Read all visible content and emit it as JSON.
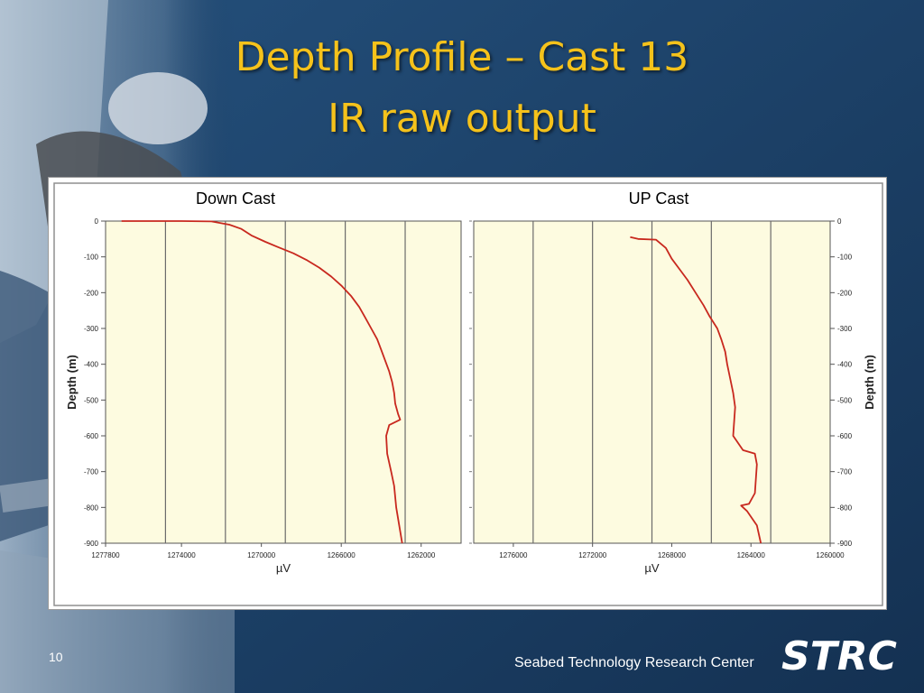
{
  "slide": {
    "title_line1": "Depth Profile – Cast 13",
    "title_line2": "IR raw output",
    "page_number": "10",
    "org_name": "Seabed Technology Research Center",
    "logo_text": "STRC",
    "colors": {
      "background": "#1b3a5e",
      "title": "#f5c21b",
      "plot_bg": "#fdfbe0",
      "trace": "#c8281e"
    }
  },
  "chart_data": [
    {
      "type": "line",
      "title": "Down Cast",
      "xlabel": "µV",
      "ylabel": "Depth (m)",
      "x_reversed": true,
      "xlim": [
        1277800,
        1260000
      ],
      "ylim": [
        -900,
        0
      ],
      "x_ticks": [
        1277800,
        1274000,
        1270000,
        1266000,
        1262000
      ],
      "x_tick_labels": [
        "1277800",
        "1274000",
        "1270000",
        "1266000",
        "1262000"
      ],
      "y_ticks": [
        0,
        -100,
        -200,
        -300,
        -400,
        -500,
        -600,
        -700,
        -800,
        -900
      ],
      "y_tick_labels": [
        "0",
        "-100",
        "-200",
        "-300",
        "-400",
        "-500",
        "-600",
        "-700",
        "-800",
        "-900"
      ],
      "vertical_grid": [
        1274800,
        1271800,
        1268800,
        1265800,
        1262800
      ],
      "series": [
        {
          "x": [
            1277000,
            1276000,
            1274000,
            1272500,
            1271600,
            1271000,
            1270500,
            1269800,
            1269200,
            1268400,
            1267700,
            1267100,
            1266500,
            1266000,
            1265500,
            1265100,
            1264800,
            1264500,
            1264200,
            1264000,
            1263800,
            1263600,
            1263450,
            1263350,
            1263300,
            1263150,
            1263050,
            1263600,
            1263750,
            1263700,
            1263500,
            1263350,
            1263250,
            1263100,
            1262950
          ],
          "y": [
            0,
            0,
            0,
            -1,
            -10,
            -22,
            -40,
            -58,
            -72,
            -90,
            -110,
            -130,
            -155,
            -180,
            -210,
            -240,
            -270,
            -300,
            -330,
            -360,
            -390,
            -420,
            -450,
            -480,
            -510,
            -540,
            -555,
            -570,
            -600,
            -650,
            -700,
            -740,
            -800,
            -850,
            -900
          ]
        }
      ]
    },
    {
      "type": "line",
      "title": "UP Cast",
      "xlabel": "µV",
      "ylabel": "Depth (m)",
      "x_reversed": true,
      "xlim": [
        1278000,
        1260000
      ],
      "ylim": [
        -900,
        0
      ],
      "x_ticks": [
        1276000,
        1272000,
        1268000,
        1264000,
        1260000
      ],
      "x_tick_labels": [
        "1276000",
        "1272000",
        "1268000",
        "1264000",
        "1260000"
      ],
      "y_ticks": [
        0,
        -100,
        -200,
        -300,
        -400,
        -500,
        -600,
        -700,
        -800,
        -900
      ],
      "y_tick_labels": [
        "0",
        "-100",
        "-200",
        "-300",
        "-400",
        "-500",
        "-600",
        "-700",
        "-800",
        "-900"
      ],
      "vertical_grid": [
        1275000,
        1272000,
        1269000,
        1266000,
        1263000
      ],
      "series": [
        {
          "x": [
            1270100,
            1269700,
            1268800,
            1268300,
            1268000,
            1267600,
            1267200,
            1266800,
            1266400,
            1266100,
            1265700,
            1265500,
            1265300,
            1265200,
            1265050,
            1264900,
            1264800,
            1264850,
            1264900,
            1264400,
            1263800,
            1263700,
            1263750,
            1263800,
            1264100,
            1264500,
            1264200,
            1263700,
            1263500
          ],
          "y": [
            -45,
            -50,
            -52,
            -75,
            -105,
            -135,
            -165,
            -200,
            -235,
            -265,
            -300,
            -330,
            -365,
            -400,
            -440,
            -480,
            -520,
            -560,
            -600,
            -640,
            -650,
            -680,
            -720,
            -760,
            -790,
            -795,
            -810,
            -850,
            -900
          ]
        }
      ]
    }
  ]
}
